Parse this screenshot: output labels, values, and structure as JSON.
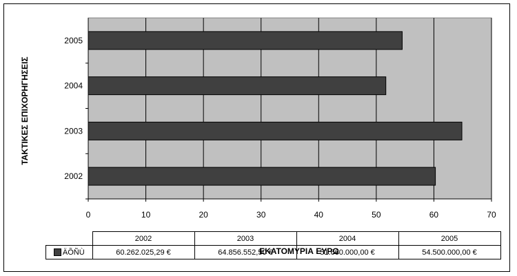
{
  "chart_data": {
    "type": "bar",
    "orientation": "horizontal",
    "categories": [
      "2002",
      "2003",
      "2004",
      "2005"
    ],
    "series": [
      {
        "name": "ÄÕÑÙ",
        "values": [
          60.26,
          64.86,
          51.66,
          54.5
        ],
        "color": "#404040"
      }
    ],
    "xlabel": "ΕΚΑΤΟΜΥΡΙΑ ΕΥΡΩ",
    "ylabel": "ΤΑΚΤΙΚΕΣ ΕΠΙΧΟΡΗΓΗΣΕΙΣ",
    "xlim": [
      0,
      70
    ],
    "xticks": [
      "0",
      "10",
      "20",
      "30",
      "40",
      "50",
      "60",
      "70"
    ],
    "grid": true,
    "plot_background": "#c0c0c0",
    "data_table": {
      "headers": [
        "2002",
        "2003",
        "2004",
        "2005"
      ],
      "rows": [
        {
          "label": "ÄÕÑÙ",
          "values": [
            "60.262.025,29 €",
            "64.856.552,50 €",
            "51.660.000,00 €",
            "54.500.000,00 €"
          ]
        }
      ]
    }
  }
}
